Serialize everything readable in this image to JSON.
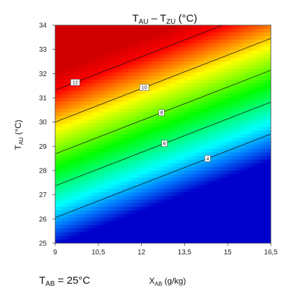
{
  "chart_data": {
    "type": "heatmap",
    "title": {
      "main": "T",
      "sub1": "AU",
      "mid": " – T",
      "sub2": "ZU",
      "unit": " (°C)"
    },
    "xlabel": {
      "main": "X",
      "sub": "AB",
      "unit": " (g/kg)"
    },
    "ylabel": {
      "main": "T",
      "sub": "AU",
      "unit": " (°C)"
    },
    "annotation": {
      "main": "T",
      "sub": "AB",
      "rest": " = 25°C"
    },
    "xlim": [
      9,
      16.5
    ],
    "ylim": [
      25,
      34
    ],
    "x_ticks": [
      {
        "value": 9,
        "label": "9"
      },
      {
        "value": 10.5,
        "label": "10,5"
      },
      {
        "value": 12,
        "label": "12"
      },
      {
        "value": 13.5,
        "label": "13,5"
      },
      {
        "value": 15,
        "label": "15"
      },
      {
        "value": 16.5,
        "label": "16,5"
      }
    ],
    "y_ticks": [
      {
        "value": 25,
        "label": "25"
      },
      {
        "value": 26,
        "label": "26"
      },
      {
        "value": 27,
        "label": "27"
      },
      {
        "value": 28,
        "label": "28"
      },
      {
        "value": 29,
        "label": "29"
      },
      {
        "value": 30,
        "label": "30"
      },
      {
        "value": 31,
        "label": "31"
      },
      {
        "value": 32,
        "label": "32"
      },
      {
        "value": 33,
        "label": "33"
      },
      {
        "value": 34,
        "label": "34"
      }
    ],
    "contours": [
      {
        "level": 4,
        "label": "4",
        "label_x": 14.3
      },
      {
        "level": 6,
        "label": "6",
        "label_x": 12.8
      },
      {
        "level": 8,
        "label": "8",
        "label_x": 12.7
      },
      {
        "level": 10,
        "label": "10",
        "label_x": 12.1
      },
      {
        "level": 12,
        "label": "12",
        "label_x": 9.7
      }
    ],
    "color_range": [
      2.3,
      13.1
    ],
    "colormap": [
      "#0000cc",
      "#0080ff",
      "#00ffff",
      "#00ff80",
      "#00ff00",
      "#80ff00",
      "#ffff00",
      "#ff8000",
      "#ff0000",
      "#d00000"
    ],
    "grid": false,
    "legend": "none"
  }
}
